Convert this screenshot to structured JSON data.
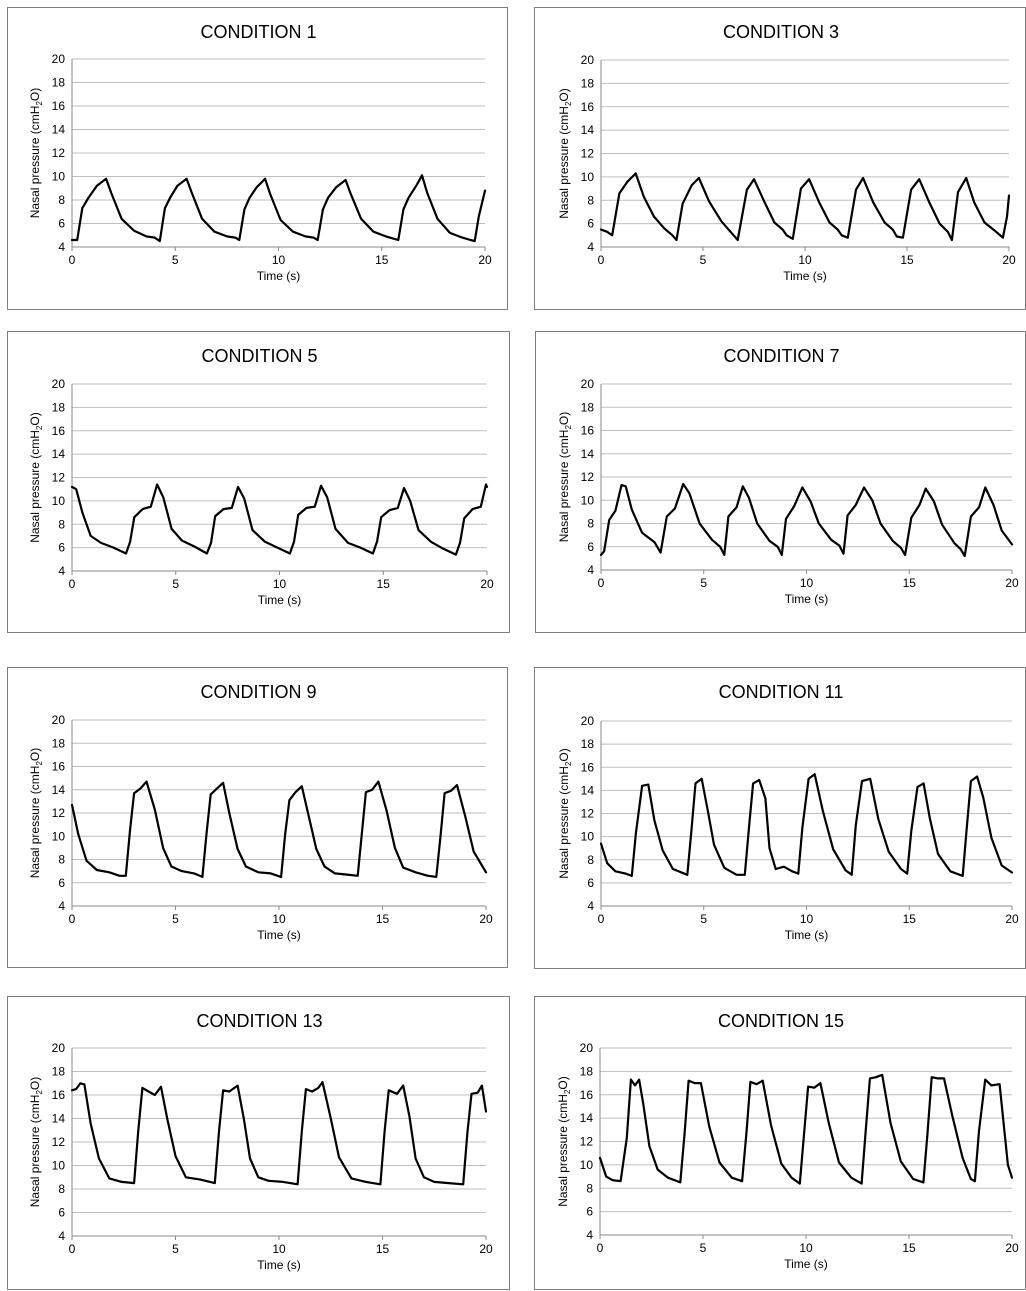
{
  "figure": {
    "ylabel_main": "Nasal pressure (cmH",
    "ylabel_sub": "2",
    "ylabel_end": "O)",
    "xlabel": "Time (s)"
  },
  "chart_data": [
    {
      "type": "line",
      "title": "CONDITION 1",
      "xlabel": "Time (s)",
      "ylabel": "Nasal pressure (cmH2O)",
      "xlim": [
        0,
        20
      ],
      "ylim": [
        4,
        20
      ],
      "xticks": [
        0,
        5,
        10,
        15,
        20
      ],
      "yticks": [
        4,
        6,
        8,
        10,
        12,
        14,
        16,
        18,
        20
      ],
      "grid": true,
      "legend": "none",
      "x": [
        0,
        0.25,
        0.5,
        0.8,
        1.2,
        1.65,
        1.9,
        2.4,
        3.0,
        3.6,
        4.0,
        4.25,
        4.5,
        4.75,
        5.1,
        5.55,
        5.8,
        6.3,
        6.9,
        7.5,
        7.9,
        8.1,
        8.35,
        8.6,
        8.95,
        9.35,
        9.6,
        10.1,
        10.7,
        11.3,
        11.7,
        11.9,
        12.15,
        12.4,
        12.8,
        13.25,
        13.5,
        14.0,
        14.6,
        15.2,
        15.6,
        15.8,
        16.05,
        16.3,
        16.7,
        16.95,
        17.2,
        17.7,
        18.3,
        18.9,
        19.3,
        19.5,
        19.7,
        20.0
      ],
      "y": [
        4.6,
        4.6,
        7.3,
        8.2,
        9.2,
        9.8,
        8.6,
        6.4,
        5.4,
        4.9,
        4.8,
        4.5,
        7.3,
        8.2,
        9.2,
        9.8,
        8.6,
        6.4,
        5.3,
        4.9,
        4.8,
        4.6,
        7.2,
        8.2,
        9.1,
        9.8,
        8.5,
        6.3,
        5.3,
        4.9,
        4.8,
        4.6,
        7.2,
        8.2,
        9.1,
        9.7,
        8.5,
        6.4,
        5.3,
        4.9,
        4.7,
        4.6,
        7.2,
        8.2,
        9.3,
        10.1,
        8.6,
        6.4,
        5.2,
        4.8,
        4.6,
        4.5,
        6.6,
        8.8
      ]
    },
    {
      "type": "line",
      "title": "CONDITION 3",
      "xlabel": "Time (s)",
      "ylabel": "Nasal pressure (cmH2O)",
      "xlim": [
        0,
        20
      ],
      "ylim": [
        4,
        20
      ],
      "xticks": [
        0,
        5,
        10,
        15,
        20
      ],
      "yticks": [
        4,
        6,
        8,
        10,
        12,
        14,
        16,
        18,
        20
      ],
      "grid": true,
      "legend": "none",
      "x": [
        0,
        0.3,
        0.55,
        0.9,
        1.3,
        1.7,
        2.1,
        2.6,
        3.1,
        3.5,
        3.7,
        4.0,
        4.45,
        4.8,
        5.3,
        5.9,
        6.2,
        6.5,
        6.7,
        7.15,
        7.5,
        8.0,
        8.5,
        8.9,
        9.1,
        9.4,
        9.8,
        10.2,
        10.7,
        11.2,
        11.6,
        11.8,
        12.1,
        12.5,
        12.85,
        13.35,
        13.9,
        14.3,
        14.5,
        14.8,
        15.2,
        15.6,
        16.1,
        16.6,
        17.0,
        17.2,
        17.5,
        17.9,
        18.3,
        18.8,
        19.3,
        19.7,
        19.9,
        20.0
      ],
      "y": [
        5.5,
        5.3,
        5.0,
        8.6,
        9.6,
        10.3,
        8.3,
        6.6,
        5.6,
        5.0,
        4.6,
        7.7,
        9.3,
        9.9,
        7.9,
        6.2,
        5.6,
        5.0,
        4.6,
        8.9,
        9.8,
        7.9,
        6.1,
        5.5,
        5.0,
        4.7,
        9.0,
        9.8,
        7.8,
        6.1,
        5.5,
        5.0,
        4.8,
        8.9,
        9.9,
        7.8,
        6.1,
        5.5,
        4.9,
        4.8,
        8.9,
        9.8,
        7.8,
        6.0,
        5.3,
        4.6,
        8.7,
        9.9,
        7.8,
        6.1,
        5.4,
        4.8,
        6.6,
        8.4
      ]
    },
    {
      "type": "line",
      "title": "CONDITION 5",
      "xlabel": "Time (s)",
      "ylabel": "Nasal pressure (cmH2O)",
      "xlim": [
        0,
        20
      ],
      "ylim": [
        4,
        20
      ],
      "xticks": [
        0,
        5,
        10,
        15,
        20
      ],
      "yticks": [
        4,
        6,
        8,
        10,
        12,
        14,
        16,
        18,
        20
      ],
      "grid": true,
      "legend": "none",
      "x": [
        0,
        0.2,
        0.5,
        0.9,
        1.4,
        2.0,
        2.6,
        2.8,
        3.0,
        3.4,
        3.8,
        4.1,
        4.4,
        4.8,
        5.3,
        5.9,
        6.5,
        6.7,
        6.9,
        7.3,
        7.7,
        8.0,
        8.3,
        8.7,
        9.3,
        9.9,
        10.5,
        10.7,
        10.9,
        11.3,
        11.7,
        12.0,
        12.3,
        12.7,
        13.3,
        13.9,
        14.5,
        14.7,
        14.9,
        15.3,
        15.7,
        16.0,
        16.3,
        16.7,
        17.3,
        17.9,
        18.5,
        18.7,
        18.9,
        19.3,
        19.7,
        19.95,
        20.0
      ],
      "y": [
        11.2,
        11.0,
        9.0,
        7.0,
        6.4,
        6.0,
        5.5,
        6.5,
        8.6,
        9.3,
        9.5,
        11.4,
        10.3,
        7.6,
        6.6,
        6.1,
        5.5,
        6.4,
        8.7,
        9.3,
        9.4,
        11.2,
        10.2,
        7.5,
        6.5,
        6.0,
        5.5,
        6.5,
        8.8,
        9.4,
        9.5,
        11.3,
        10.3,
        7.6,
        6.4,
        6.0,
        5.5,
        6.5,
        8.6,
        9.2,
        9.4,
        11.1,
        10.0,
        7.5,
        6.5,
        5.9,
        5.4,
        6.4,
        8.5,
        9.3,
        9.5,
        11.4,
        11.2
      ]
    },
    {
      "type": "line",
      "title": "CONDITION 7",
      "xlabel": "Time (s)",
      "ylabel": "Nasal pressure (cmH2O)",
      "xlim": [
        0,
        20
      ],
      "ylim": [
        4,
        20
      ],
      "xticks": [
        0,
        5,
        10,
        15,
        20
      ],
      "yticks": [
        4,
        6,
        8,
        10,
        12,
        14,
        16,
        18,
        20
      ],
      "grid": true,
      "legend": "none",
      "x": [
        0,
        0.15,
        0.4,
        0.7,
        1.0,
        1.2,
        1.5,
        2.0,
        2.6,
        2.9,
        3.2,
        3.6,
        4.0,
        4.3,
        4.8,
        5.4,
        5.8,
        6.0,
        6.2,
        6.6,
        6.9,
        7.2,
        7.6,
        8.2,
        8.6,
        8.8,
        9.0,
        9.4,
        9.8,
        10.2,
        10.6,
        11.2,
        11.6,
        11.8,
        12.0,
        12.4,
        12.8,
        13.2,
        13.6,
        14.2,
        14.6,
        14.8,
        15.1,
        15.5,
        15.8,
        16.2,
        16.6,
        17.2,
        17.5,
        17.7,
        18.0,
        18.4,
        18.7,
        19.1,
        19.5,
        20.0
      ],
      "y": [
        5.3,
        5.6,
        8.3,
        9.1,
        11.3,
        11.2,
        9.2,
        7.2,
        6.4,
        5.5,
        8.6,
        9.3,
        11.4,
        10.6,
        8.0,
        6.6,
        6.0,
        5.3,
        8.6,
        9.4,
        11.2,
        10.2,
        8.0,
        6.5,
        6.0,
        5.3,
        8.4,
        9.5,
        11.1,
        9.9,
        8.0,
        6.6,
        6.1,
        5.4,
        8.7,
        9.6,
        11.1,
        10.0,
        8.0,
        6.5,
        5.9,
        5.3,
        8.5,
        9.6,
        11.0,
        9.9,
        7.9,
        6.3,
        5.8,
        5.2,
        8.6,
        9.4,
        11.1,
        9.6,
        7.4,
        6.2
      ]
    },
    {
      "type": "line",
      "title": "CONDITION 9",
      "xlabel": "Time (s)",
      "ylabel": "Nasal pressure (cmH2O)",
      "xlim": [
        0,
        20
      ],
      "ylim": [
        4,
        20
      ],
      "xticks": [
        0,
        5,
        10,
        15,
        20
      ],
      "yticks": [
        4,
        6,
        8,
        10,
        12,
        14,
        16,
        18,
        20
      ],
      "grid": true,
      "legend": "none",
      "x": [
        0,
        0.3,
        0.7,
        1.2,
        1.8,
        2.3,
        2.6,
        2.8,
        3.0,
        3.3,
        3.6,
        4.0,
        4.4,
        4.8,
        5.3,
        5.9,
        6.3,
        6.5,
        6.7,
        7.0,
        7.3,
        7.6,
        8.0,
        8.4,
        9.0,
        9.6,
        10.1,
        10.3,
        10.5,
        10.8,
        11.1,
        11.4,
        11.8,
        12.2,
        12.7,
        13.3,
        13.8,
        14.0,
        14.2,
        14.5,
        14.8,
        15.2,
        15.6,
        16.0,
        16.6,
        17.2,
        17.6,
        17.8,
        18.0,
        18.3,
        18.6,
        19.0,
        19.4,
        20.0
      ],
      "y": [
        12.7,
        10.2,
        7.9,
        7.1,
        6.9,
        6.6,
        6.6,
        10.5,
        13.7,
        14.1,
        14.7,
        12.3,
        9.0,
        7.4,
        7.0,
        6.8,
        6.5,
        10.3,
        13.6,
        14.1,
        14.6,
        12.0,
        8.9,
        7.4,
        6.9,
        6.8,
        6.5,
        10.2,
        13.1,
        13.8,
        14.3,
        12.0,
        8.9,
        7.4,
        6.8,
        6.7,
        6.6,
        10.2,
        13.8,
        14.0,
        14.7,
        12.2,
        9.0,
        7.3,
        6.9,
        6.6,
        6.5,
        10.0,
        13.7,
        13.9,
        14.4,
        11.7,
        8.7,
        6.9
      ]
    },
    {
      "type": "line",
      "title": "CONDITION 11",
      "xlabel": "Time (s)",
      "ylabel": "Nasal pressure (cmH2O)",
      "xlim": [
        0,
        20
      ],
      "ylim": [
        4,
        20
      ],
      "xticks": [
        0,
        5,
        10,
        15,
        20
      ],
      "yticks": [
        4,
        6,
        8,
        10,
        12,
        14,
        16,
        18,
        20
      ],
      "grid": true,
      "legend": "none",
      "x": [
        0,
        0.3,
        0.7,
        1.2,
        1.5,
        1.7,
        2.0,
        2.3,
        2.6,
        3.0,
        3.5,
        4.2,
        4.4,
        4.6,
        4.9,
        5.2,
        5.5,
        6.0,
        6.6,
        7.0,
        7.2,
        7.4,
        7.7,
        8.0,
        8.2,
        8.5,
        8.9,
        9.3,
        9.6,
        9.8,
        10.1,
        10.4,
        10.8,
        11.3,
        11.9,
        12.2,
        12.4,
        12.7,
        13.1,
        13.5,
        14.0,
        14.6,
        14.9,
        15.1,
        15.4,
        15.7,
        16.0,
        16.4,
        17.0,
        17.6,
        17.8,
        18.0,
        18.3,
        18.6,
        19.0,
        19.5,
        20.0
      ],
      "y": [
        9.4,
        7.7,
        7.0,
        6.8,
        6.6,
        10.3,
        14.4,
        14.5,
        11.4,
        8.8,
        7.2,
        6.7,
        10.5,
        14.6,
        15.0,
        12.2,
        9.3,
        7.3,
        6.7,
        6.7,
        10.8,
        14.6,
        14.9,
        13.3,
        9.0,
        7.2,
        7.4,
        7.0,
        6.8,
        10.8,
        15.0,
        15.4,
        12.2,
        8.9,
        7.1,
        6.7,
        11.0,
        14.8,
        15.0,
        11.5,
        8.7,
        7.2,
        6.8,
        10.5,
        14.3,
        14.6,
        11.6,
        8.5,
        7.0,
        6.6,
        10.8,
        14.8,
        15.2,
        13.4,
        9.9,
        7.5,
        6.9
      ]
    },
    {
      "type": "line",
      "title": "CONDITION 13",
      "xlabel": "Time (s)",
      "ylabel": "Nasal pressure (cmH2O)",
      "xlim": [
        0,
        20
      ],
      "ylim": [
        4,
        20
      ],
      "xticks": [
        0,
        5,
        10,
        15,
        20
      ],
      "yticks": [
        4,
        6,
        8,
        10,
        12,
        14,
        16,
        18,
        20
      ],
      "grid": true,
      "legend": "none",
      "x": [
        0,
        0.2,
        0.4,
        0.6,
        0.9,
        1.3,
        1.8,
        2.4,
        3.0,
        3.2,
        3.4,
        3.7,
        4.0,
        4.3,
        4.6,
        5.0,
        5.5,
        6.2,
        6.9,
        7.1,
        7.3,
        7.6,
        8.0,
        8.3,
        8.6,
        9.0,
        9.5,
        10.2,
        10.9,
        11.1,
        11.3,
        11.6,
        11.9,
        12.1,
        12.5,
        12.9,
        13.5,
        14.2,
        14.9,
        15.1,
        15.3,
        15.7,
        16.0,
        16.3,
        16.6,
        17.0,
        17.5,
        18.2,
        18.9,
        19.1,
        19.3,
        19.6,
        19.8,
        20.0
      ],
      "y": [
        16.4,
        16.5,
        17.0,
        16.9,
        13.6,
        10.6,
        8.9,
        8.6,
        8.5,
        12.9,
        16.6,
        16.3,
        16.0,
        16.7,
        14.0,
        10.8,
        9.0,
        8.8,
        8.5,
        12.9,
        16.4,
        16.3,
        16.8,
        14.0,
        10.6,
        9.0,
        8.7,
        8.6,
        8.4,
        12.9,
        16.5,
        16.3,
        16.6,
        17.1,
        14.0,
        10.7,
        8.9,
        8.6,
        8.4,
        12.9,
        16.4,
        16.1,
        16.8,
        14.2,
        10.6,
        9.0,
        8.6,
        8.5,
        8.4,
        12.8,
        16.1,
        16.2,
        16.8,
        14.6
      ]
    },
    {
      "type": "line",
      "title": "CONDITION 15",
      "xlabel": "Time (s)",
      "ylabel": "Nasal pressure (cmH2O)",
      "xlim": [
        0,
        20
      ],
      "ylim": [
        4,
        20
      ],
      "xticks": [
        0,
        5,
        10,
        15,
        20
      ],
      "yticks": [
        4,
        6,
        8,
        10,
        12,
        14,
        16,
        18,
        20
      ],
      "grid": true,
      "legend": "none",
      "x": [
        0,
        0.3,
        0.6,
        1.0,
        1.3,
        1.5,
        1.7,
        1.9,
        2.1,
        2.4,
        2.8,
        3.3,
        3.9,
        4.1,
        4.3,
        4.6,
        4.9,
        5.3,
        5.8,
        6.4,
        6.9,
        7.1,
        7.3,
        7.6,
        7.9,
        8.3,
        8.8,
        9.3,
        9.7,
        9.9,
        10.1,
        10.4,
        10.7,
        11.1,
        11.6,
        12.2,
        12.7,
        12.9,
        13.1,
        13.4,
        13.7,
        14.1,
        14.6,
        15.2,
        15.7,
        15.9,
        16.1,
        16.4,
        16.7,
        17.1,
        17.6,
        18.0,
        18.2,
        18.4,
        18.7,
        19.0,
        19.4,
        19.8,
        20.0
      ],
      "y": [
        10.6,
        9.0,
        8.7,
        8.6,
        12.3,
        17.3,
        16.8,
        17.3,
        15.2,
        11.6,
        9.6,
        8.9,
        8.5,
        12.6,
        17.2,
        17.0,
        17.0,
        13.3,
        10.2,
        8.9,
        8.6,
        12.6,
        17.1,
        16.9,
        17.2,
        13.4,
        10.1,
        8.9,
        8.4,
        12.5,
        16.7,
        16.6,
        17.0,
        13.6,
        10.2,
        8.9,
        8.4,
        12.9,
        17.4,
        17.5,
        17.7,
        13.6,
        10.3,
        8.8,
        8.5,
        12.7,
        17.5,
        17.4,
        17.4,
        14.2,
        10.6,
        8.8,
        8.6,
        12.9,
        17.3,
        16.8,
        16.9,
        10.0,
        8.9
      ]
    }
  ]
}
